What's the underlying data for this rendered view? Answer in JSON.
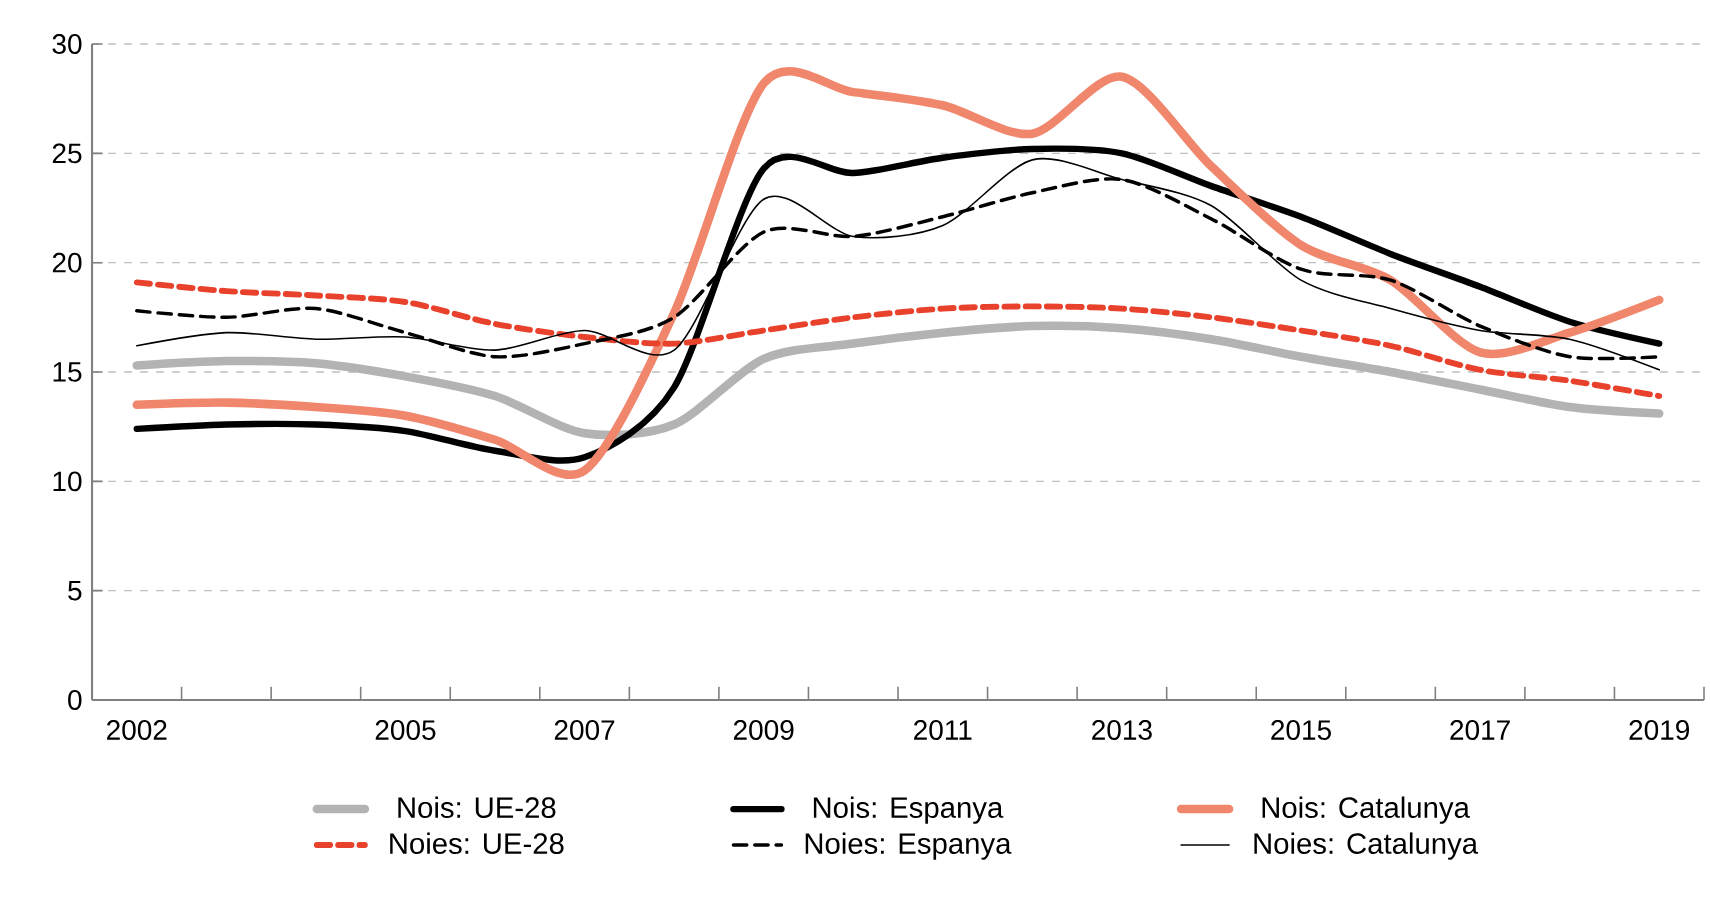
{
  "chart_data": {
    "type": "line",
    "categories": [
      "2002",
      null,
      null,
      "2005",
      null,
      "2007",
      null,
      "2009",
      null,
      "2011",
      null,
      "2013",
      null,
      "2015",
      null,
      "2017",
      null,
      "2019"
    ],
    "ylim": [
      0,
      30
    ],
    "yticks": [
      0,
      5,
      10,
      15,
      20,
      25,
      30
    ],
    "grid": "y",
    "legend": "bottom",
    "marker": "none",
    "series": [
      {
        "name": "Nois: UE-28",
        "color": "#b3b3b3",
        "line_style": "solid",
        "values": [
          15.3,
          15.5,
          15.4,
          14.8,
          13.9,
          12.2,
          12.6,
          15.6,
          16.3,
          16.8,
          17.1,
          17.0,
          16.5,
          15.7,
          15.0,
          14.2,
          13.4,
          13.1
        ]
      },
      {
        "name": "Nois: Espanya",
        "color": "#000000",
        "line_style": "solid",
        "values": [
          12.4,
          12.6,
          12.6,
          12.3,
          11.4,
          11.1,
          14.3,
          24.3,
          24.1,
          24.8,
          25.2,
          25.0,
          23.5,
          22.1,
          20.4,
          18.9,
          17.3,
          16.3
        ]
      },
      {
        "name": "Nois: Catalunya",
        "color": "#f0866b",
        "line_style": "solid",
        "values": [
          13.5,
          13.6,
          13.4,
          13.0,
          11.9,
          10.5,
          17.7,
          28.2,
          27.8,
          27.2,
          25.9,
          28.5,
          24.4,
          20.8,
          19.2,
          15.9,
          16.8,
          18.3
        ]
      },
      {
        "name": "Noies: UE-28",
        "color": "#e8412c",
        "line_style": "dashed",
        "values": [
          19.1,
          18.7,
          18.5,
          18.2,
          17.2,
          16.6,
          16.3,
          16.9,
          17.5,
          17.9,
          18.0,
          17.9,
          17.5,
          16.9,
          16.2,
          15.1,
          14.6,
          13.9
        ]
      },
      {
        "name": "Noies: Espanya",
        "color": "#000000",
        "line_style": "dashed",
        "values": [
          17.8,
          17.5,
          17.9,
          16.8,
          15.7,
          16.3,
          17.5,
          21.4,
          21.2,
          22.1,
          23.2,
          23.8,
          22.0,
          19.7,
          19.2,
          17.1,
          15.7,
          15.7
        ]
      },
      {
        "name": "Noies: Catalunya",
        "color": "#000000",
        "line_style": "solid",
        "values": [
          16.2,
          16.8,
          16.5,
          16.6,
          16.0,
          16.9,
          16.0,
          22.9,
          21.2,
          21.7,
          24.7,
          23.8,
          22.6,
          19.2,
          17.9,
          16.9,
          16.5,
          15.1
        ]
      }
    ]
  }
}
